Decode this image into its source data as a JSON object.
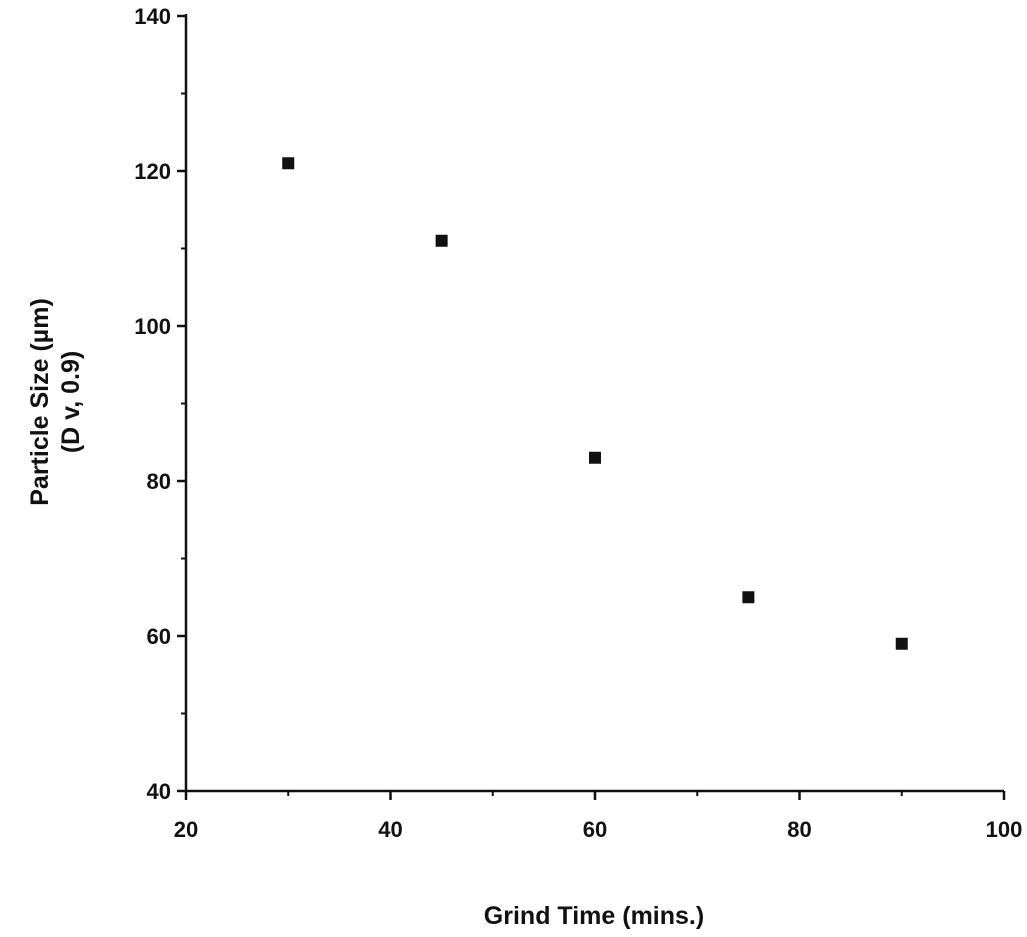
{
  "chart_data": {
    "type": "scatter",
    "title": "",
    "xlabel": "Grind Time (mins.)",
    "ylabel": [
      "Particle Size (µm)",
      "(D v, 0.9)"
    ],
    "xlim": [
      20,
      100
    ],
    "ylim": [
      40,
      140
    ],
    "x_ticks": [
      20,
      40,
      60,
      80,
      100
    ],
    "y_ticks": [
      40,
      60,
      80,
      100,
      120,
      140
    ],
    "x_minor_step": 10,
    "y_minor_step": 10,
    "grid": false,
    "legend": "none",
    "marker": "square",
    "marker_color": "#111111",
    "series": [
      {
        "x": [
          30,
          45,
          60,
          75,
          90
        ],
        "y": [
          121,
          111,
          83,
          65,
          59
        ]
      }
    ]
  }
}
